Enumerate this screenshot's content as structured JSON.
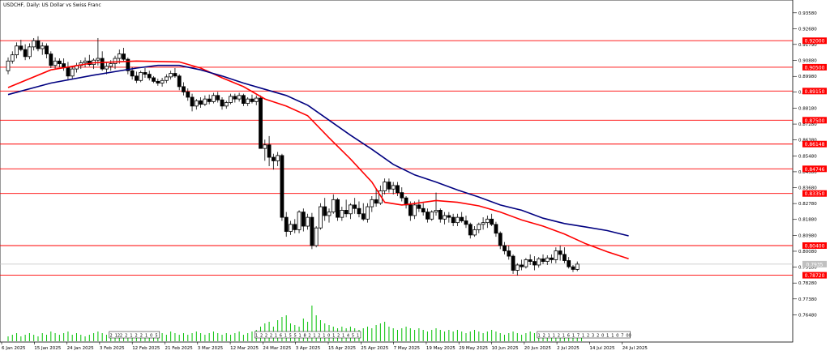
{
  "chart_data": {
    "type": "candlestick",
    "title": "USDCHF, Daily:  US Dollar vs Swiss Franc",
    "x_tick_labels": [
      "6 Jan 2025",
      "15 Jan 2025",
      "24 Jan 2025",
      "3 Feb 2025",
      "12 Feb 2025",
      "21 Feb 2025",
      "3 Mar 2025",
      "12 Mar 2025",
      "24 Mar 2025",
      "3 Apr 2025",
      "15 Apr 2025",
      "25 Apr 2025",
      "7 May 2025",
      "19 May 2025",
      "29 May 2025",
      "10 Jun 2025",
      "20 Jun 2025",
      "2 Jul 2025",
      "14 Jul 2025",
      "24 Jul 2025"
    ],
    "y_ticks": [
      "0.93580",
      "0.92680",
      "0.91790",
      "0.90880",
      "0.89980",
      "0.89090",
      "0.88180",
      "0.87280",
      "0.86380",
      "0.85480",
      "0.84580",
      "0.83680",
      "0.82780",
      "0.81880",
      "0.80980",
      "0.80080",
      "0.79180",
      "0.78280",
      "0.77380",
      "0.76480"
    ],
    "ylim": [
      0.7604,
      0.9403
    ],
    "grid": false,
    "levels": [
      {
        "value": 0.92,
        "label": "0.92000"
      },
      {
        "value": 0.905,
        "label": "0.90500"
      },
      {
        "value": 0.8915,
        "label": "0.89150"
      },
      {
        "value": 0.875,
        "label": "0.87500"
      },
      {
        "value": 0.86148,
        "label": "0.86148"
      },
      {
        "value": 0.84746,
        "label": "0.84746"
      },
      {
        "value": 0.8335,
        "label": "0.83350"
      },
      {
        "value": 0.804,
        "label": "0.80400"
      },
      {
        "value": 0.7872,
        "label": "0.78720"
      }
    ],
    "current_price": {
      "value": 0.7935,
      "label": "0.7935"
    },
    "moving_averages": [
      {
        "color": "#ff0000",
        "points": [
          [
            0,
            0.8935
          ],
          [
            10,
            0.9035
          ],
          [
            20,
            0.9075
          ],
          [
            30,
            0.9085
          ],
          [
            40,
            0.908
          ],
          [
            45,
            0.9045
          ],
          [
            50,
            0.899
          ],
          [
            55,
            0.894
          ],
          [
            60,
            0.887
          ],
          [
            65,
            0.883
          ],
          [
            70,
            0.8775
          ],
          [
            75,
            0.865
          ],
          [
            80,
            0.853
          ],
          [
            85,
            0.84
          ],
          [
            88,
            0.8285
          ],
          [
            92,
            0.827
          ],
          [
            95,
            0.8278
          ],
          [
            100,
            0.8295
          ],
          [
            105,
            0.8285
          ],
          [
            110,
            0.8265
          ],
          [
            115,
            0.823
          ],
          [
            120,
            0.8185
          ],
          [
            125,
            0.815
          ],
          [
            130,
            0.8105
          ],
          [
            135,
            0.805
          ],
          [
            140,
            0.8005
          ],
          [
            145,
            0.7965
          ]
        ]
      },
      {
        "color": "#000080",
        "points": [
          [
            0,
            0.8895
          ],
          [
            10,
            0.896
          ],
          [
            20,
            0.9005
          ],
          [
            30,
            0.9045
          ],
          [
            35,
            0.906
          ],
          [
            40,
            0.906
          ],
          [
            45,
            0.9035
          ],
          [
            50,
            0.9
          ],
          [
            55,
            0.896
          ],
          [
            60,
            0.8925
          ],
          [
            65,
            0.889
          ],
          [
            70,
            0.8835
          ],
          [
            75,
            0.875
          ],
          [
            80,
            0.8665
          ],
          [
            85,
            0.8585
          ],
          [
            90,
            0.85
          ],
          [
            95,
            0.844
          ],
          [
            100,
            0.84
          ],
          [
            105,
            0.8355
          ],
          [
            110,
            0.8315
          ],
          [
            115,
            0.827
          ],
          [
            120,
            0.824
          ],
          [
            125,
            0.8195
          ],
          [
            130,
            0.8165
          ],
          [
            135,
            0.8145
          ],
          [
            140,
            0.8125
          ],
          [
            145,
            0.8095
          ]
        ]
      }
    ],
    "series_ohlc": [
      [
        0.903,
        0.9105,
        0.901,
        0.9085
      ],
      [
        0.9085,
        0.914,
        0.907,
        0.912
      ],
      [
        0.912,
        0.919,
        0.91,
        0.917
      ],
      [
        0.917,
        0.9205,
        0.914,
        0.915
      ],
      [
        0.915,
        0.918,
        0.909,
        0.911
      ],
      [
        0.911,
        0.9185,
        0.9095,
        0.9165
      ],
      [
        0.9165,
        0.9215,
        0.9145,
        0.92
      ],
      [
        0.92,
        0.9225,
        0.914,
        0.9155
      ],
      [
        0.9155,
        0.919,
        0.912,
        0.917
      ],
      [
        0.917,
        0.9185,
        0.91,
        0.9125
      ],
      [
        0.9125,
        0.914,
        0.9045,
        0.906
      ],
      [
        0.906,
        0.9105,
        0.904,
        0.9085
      ],
      [
        0.9085,
        0.91,
        0.905,
        0.907
      ],
      [
        0.907,
        0.91,
        0.903,
        0.905
      ],
      [
        0.905,
        0.908,
        0.8975,
        0.9
      ],
      [
        0.9,
        0.9055,
        0.8985,
        0.904
      ],
      [
        0.904,
        0.9075,
        0.902,
        0.906
      ],
      [
        0.906,
        0.909,
        0.904,
        0.9075
      ],
      [
        0.9075,
        0.9105,
        0.905,
        0.9085
      ],
      [
        0.9085,
        0.912,
        0.9055,
        0.9065
      ],
      [
        0.9065,
        0.91,
        0.904,
        0.909
      ],
      [
        0.909,
        0.9215,
        0.906,
        0.91
      ],
      [
        0.91,
        0.914,
        0.903,
        0.904
      ],
      [
        0.904,
        0.908,
        0.901,
        0.9055
      ],
      [
        0.9055,
        0.909,
        0.903,
        0.907
      ],
      [
        0.907,
        0.9115,
        0.904,
        0.91
      ],
      [
        0.91,
        0.915,
        0.907,
        0.9125
      ],
      [
        0.9125,
        0.916,
        0.9085,
        0.9095
      ],
      [
        0.9095,
        0.9105,
        0.901,
        0.903
      ],
      [
        0.903,
        0.905,
        0.898,
        0.9
      ],
      [
        0.9,
        0.9025,
        0.896,
        0.8975
      ],
      [
        0.8975,
        0.903,
        0.8965,
        0.902
      ],
      [
        0.902,
        0.9045,
        0.899,
        0.901
      ],
      [
        0.901,
        0.903,
        0.8975,
        0.899
      ],
      [
        0.899,
        0.9,
        0.896,
        0.897
      ],
      [
        0.897,
        0.8985,
        0.8945,
        0.896
      ],
      [
        0.896,
        0.899,
        0.894,
        0.8975
      ],
      [
        0.8975,
        0.901,
        0.896,
        0.8995
      ],
      [
        0.8995,
        0.903,
        0.898,
        0.9015
      ],
      [
        0.9015,
        0.9045,
        0.899,
        0.9
      ],
      [
        0.9,
        0.901,
        0.892,
        0.894
      ],
      [
        0.894,
        0.8965,
        0.889,
        0.891
      ],
      [
        0.891,
        0.893,
        0.886,
        0.888
      ],
      [
        0.888,
        0.89,
        0.88,
        0.883
      ],
      [
        0.883,
        0.887,
        0.881,
        0.886
      ],
      [
        0.886,
        0.888,
        0.882,
        0.884
      ],
      [
        0.884,
        0.889,
        0.883,
        0.887
      ],
      [
        0.887,
        0.8895,
        0.884,
        0.8855
      ],
      [
        0.8855,
        0.8905,
        0.8845,
        0.889
      ],
      [
        0.889,
        0.891,
        0.885,
        0.8865
      ],
      [
        0.8865,
        0.888,
        0.881,
        0.883
      ],
      [
        0.883,
        0.886,
        0.8815,
        0.885
      ],
      [
        0.885,
        0.89,
        0.884,
        0.8885
      ],
      [
        0.8885,
        0.89,
        0.885,
        0.887
      ],
      [
        0.887,
        0.8905,
        0.8855,
        0.889
      ],
      [
        0.889,
        0.89,
        0.883,
        0.8845
      ],
      [
        0.8845,
        0.888,
        0.883,
        0.887
      ],
      [
        0.887,
        0.8895,
        0.8845,
        0.8855
      ],
      [
        0.8855,
        0.889,
        0.8835,
        0.8875
      ],
      [
        0.8875,
        0.889,
        0.875,
        0.859
      ],
      [
        0.859,
        0.864,
        0.852,
        0.861
      ],
      [
        0.861,
        0.866,
        0.849,
        0.854
      ],
      [
        0.854,
        0.856,
        0.847,
        0.852
      ],
      [
        0.852,
        0.857,
        0.849,
        0.855
      ],
      [
        0.855,
        0.856,
        0.818,
        0.82
      ],
      [
        0.82,
        0.823,
        0.809,
        0.812
      ],
      [
        0.812,
        0.818,
        0.81,
        0.816
      ],
      [
        0.816,
        0.819,
        0.811,
        0.813
      ],
      [
        0.813,
        0.824,
        0.811,
        0.823
      ],
      [
        0.823,
        0.825,
        0.812,
        0.815
      ],
      [
        0.815,
        0.822,
        0.813,
        0.82
      ],
      [
        0.82,
        0.8225,
        0.802,
        0.804
      ],
      [
        0.804,
        0.815,
        0.803,
        0.814
      ],
      [
        0.814,
        0.828,
        0.813,
        0.826
      ],
      [
        0.826,
        0.831,
        0.818,
        0.821
      ],
      [
        0.821,
        0.825,
        0.817,
        0.823
      ],
      [
        0.823,
        0.833,
        0.822,
        0.83
      ],
      [
        0.83,
        0.831,
        0.818,
        0.82
      ],
      [
        0.82,
        0.826,
        0.818,
        0.824
      ],
      [
        0.824,
        0.83,
        0.82,
        0.822
      ],
      [
        0.822,
        0.828,
        0.819,
        0.827
      ],
      [
        0.827,
        0.831,
        0.822,
        0.825
      ],
      [
        0.825,
        0.829,
        0.82,
        0.822
      ],
      [
        0.822,
        0.828,
        0.818,
        0.819
      ],
      [
        0.819,
        0.828,
        0.817,
        0.826
      ],
      [
        0.826,
        0.832,
        0.823,
        0.83
      ],
      [
        0.83,
        0.836,
        0.826,
        0.828
      ],
      [
        0.828,
        0.838,
        0.827,
        0.835
      ],
      [
        0.835,
        0.842,
        0.833,
        0.84
      ],
      [
        0.84,
        0.842,
        0.834,
        0.836
      ],
      [
        0.836,
        0.84,
        0.833,
        0.838
      ],
      [
        0.838,
        0.84,
        0.832,
        0.834
      ],
      [
        0.834,
        0.837,
        0.829,
        0.831
      ],
      [
        0.831,
        0.832,
        0.825,
        0.827
      ],
      [
        0.827,
        0.829,
        0.818,
        0.821
      ],
      [
        0.821,
        0.829,
        0.819,
        0.827
      ],
      [
        0.827,
        0.83,
        0.823,
        0.825
      ],
      [
        0.825,
        0.828,
        0.821,
        0.823
      ],
      [
        0.823,
        0.825,
        0.817,
        0.819
      ],
      [
        0.819,
        0.824,
        0.818,
        0.823
      ],
      [
        0.823,
        0.834,
        0.821,
        0.824
      ],
      [
        0.824,
        0.825,
        0.817,
        0.819
      ],
      [
        0.819,
        0.823,
        0.816,
        0.821
      ],
      [
        0.821,
        0.823,
        0.817,
        0.82
      ],
      [
        0.82,
        0.822,
        0.815,
        0.817
      ],
      [
        0.817,
        0.822,
        0.815,
        0.82
      ],
      [
        0.82,
        0.823,
        0.817,
        0.818
      ],
      [
        0.818,
        0.821,
        0.814,
        0.816
      ],
      [
        0.816,
        0.817,
        0.808,
        0.81
      ],
      [
        0.81,
        0.815,
        0.809,
        0.813
      ],
      [
        0.813,
        0.817,
        0.811,
        0.816
      ],
      [
        0.816,
        0.82,
        0.813,
        0.817
      ],
      [
        0.817,
        0.821,
        0.814,
        0.819
      ],
      [
        0.819,
        0.822,
        0.815,
        0.816
      ],
      [
        0.816,
        0.8175,
        0.809,
        0.811
      ],
      [
        0.811,
        0.812,
        0.802,
        0.804
      ],
      [
        0.804,
        0.806,
        0.799,
        0.801
      ],
      [
        0.801,
        0.804,
        0.796,
        0.798
      ],
      [
        0.798,
        0.799,
        0.788,
        0.79
      ],
      [
        0.79,
        0.794,
        0.787,
        0.793
      ],
      [
        0.793,
        0.796,
        0.79,
        0.792
      ],
      [
        0.792,
        0.797,
        0.791,
        0.796
      ],
      [
        0.796,
        0.799,
        0.793,
        0.795
      ],
      [
        0.795,
        0.798,
        0.79,
        0.793
      ],
      [
        0.793,
        0.7975,
        0.7915,
        0.7965
      ],
      [
        0.7965,
        0.799,
        0.7935,
        0.795
      ],
      [
        0.795,
        0.7985,
        0.793,
        0.797
      ],
      [
        0.797,
        0.799,
        0.794,
        0.796
      ],
      [
        0.796,
        0.803,
        0.794,
        0.801
      ],
      [
        0.801,
        0.804,
        0.7955,
        0.799
      ],
      [
        0.799,
        0.803,
        0.794,
        0.7955
      ],
      [
        0.7955,
        0.7975,
        0.791,
        0.792
      ],
      [
        0.792,
        0.793,
        0.789,
        0.7905
      ],
      [
        0.7905,
        0.795,
        0.7895,
        0.7935
      ]
    ],
    "volumes": [
      3,
      4,
      5,
      3,
      4,
      5,
      4,
      3,
      5,
      4,
      6,
      5,
      4,
      5,
      6,
      4,
      5,
      4,
      3,
      4,
      5,
      6,
      5,
      4,
      5,
      4,
      6,
      5,
      4,
      6,
      5,
      4,
      5,
      4,
      3,
      4,
      5,
      4,
      6,
      5,
      4,
      5,
      4,
      5,
      6,
      5,
      4,
      5,
      6,
      5,
      4,
      5,
      4,
      5,
      6,
      4,
      5,
      6,
      7,
      9,
      11,
      12,
      9,
      13,
      15,
      16,
      11,
      10,
      9,
      14,
      12,
      22,
      16,
      13,
      11,
      10,
      9,
      8,
      9,
      8,
      9,
      8,
      7,
      8,
      9,
      8,
      10,
      11,
      12,
      9,
      8,
      7,
      8,
      9,
      8,
      7,
      8,
      7,
      6,
      7,
      8,
      7,
      6,
      7,
      6,
      7,
      6,
      5,
      6,
      7,
      6,
      5,
      6,
      7,
      6,
      5,
      4,
      5,
      6,
      5,
      4,
      5,
      6,
      5,
      4,
      5,
      6,
      5,
      4,
      5,
      4,
      5,
      4,
      5,
      5
    ],
    "volume_boxes": [
      {
        "start": 24,
        "end": 35,
        "labels": [
          "2",
          "12",
          "2",
          "2",
          "1",
          "2",
          "2",
          "1",
          "0",
          "5"
        ]
      },
      {
        "start": 58,
        "end": 82,
        "labels": [
          "1",
          "2",
          "2",
          "2",
          "1",
          "6",
          "1",
          "5",
          "5",
          "1",
          "8",
          "2",
          "1",
          "2",
          "1",
          "0",
          "1",
          "2",
          "1",
          "4",
          "5",
          "1"
        ]
      },
      {
        "start": 124,
        "end": 145,
        "labels": [
          "1",
          "2",
          "1",
          "1",
          "2",
          "1",
          "6",
          "1",
          "7",
          "1",
          "2",
          "3",
          "2",
          "0",
          "1",
          "1",
          "0",
          "7",
          "00"
        ]
      }
    ]
  }
}
